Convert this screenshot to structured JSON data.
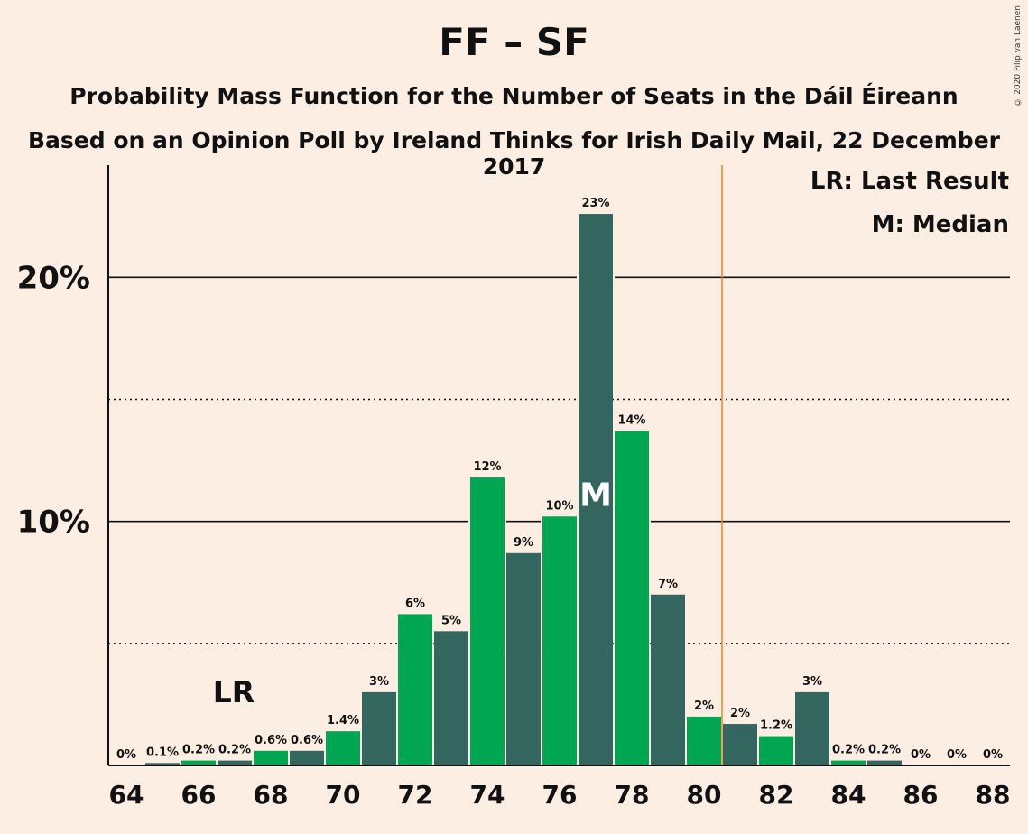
{
  "title": "FF – SF",
  "subtitle1": "Probability Mass Function for the Number of Seats in the Dáil Éireann",
  "subtitle2": "Based on an Opinion Poll by Ireland Thinks for Irish Daily Mail, 22 December 2017",
  "copyright": "© 2020 Filip van Laenen",
  "legend": {
    "lr": "LR: Last Result",
    "m": "M: Median"
  },
  "markers": {
    "lr_text": "LR",
    "median_text": "M"
  },
  "colors": {
    "background": "#fdeee3",
    "green": "#00a651",
    "dark": "#33665e",
    "last_result_line": "#f08030"
  },
  "chart_data": {
    "type": "bar",
    "x": [
      64,
      65,
      66,
      67,
      68,
      69,
      70,
      71,
      72,
      73,
      74,
      75,
      76,
      77,
      78,
      79,
      80,
      81,
      82,
      83,
      84,
      85,
      86,
      87,
      88
    ],
    "values": [
      0,
      0.1,
      0.2,
      0.2,
      0.6,
      0.6,
      1.4,
      3,
      6.2,
      5.5,
      11.8,
      8.7,
      10.2,
      22.6,
      13.7,
      7,
      2,
      1.7,
      1.2,
      3,
      0.2,
      0.2,
      0,
      0,
      0
    ],
    "labels": [
      "0%",
      "0.1%",
      "0.2%",
      "0.2%",
      "0.6%",
      "0.6%",
      "1.4%",
      "3%",
      "6%",
      "5%",
      "12%",
      "9%",
      "10%",
      "23%",
      "14%",
      "7%",
      "2%",
      "2%",
      "1.2%",
      "3%",
      "0.2%",
      "0.2%",
      "0%",
      "0%",
      "0%"
    ],
    "x_ticks": [
      "64",
      "66",
      "68",
      "70",
      "72",
      "74",
      "76",
      "78",
      "80",
      "82",
      "84",
      "86",
      "88"
    ],
    "y_ticks": [
      {
        "value": 10,
        "label": "10%"
      },
      {
        "value": 20,
        "label": "20%"
      }
    ],
    "dotted_lines": [
      5,
      15
    ],
    "ylim": [
      0,
      24.6
    ],
    "last_result": 67,
    "median": 77,
    "majority_line": 80.5,
    "grid": true
  }
}
